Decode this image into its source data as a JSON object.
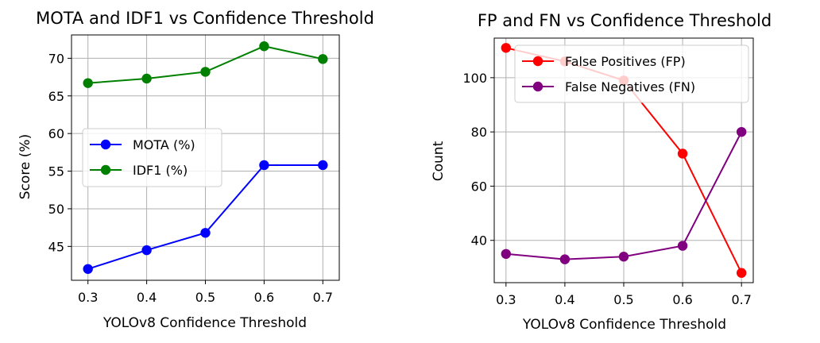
{
  "chart_data": [
    {
      "type": "line",
      "title": "MOTA and IDF1 vs Confidence Threshold",
      "xlabel": "YOLOv8 Confidence Threshold",
      "ylabel": "Score (%)",
      "x": [
        0.3,
        0.4,
        0.5,
        0.6,
        0.7
      ],
      "x_ticks": [
        "0.3",
        "0.4",
        "0.5",
        "0.6",
        "0.7"
      ],
      "y_ticks": [
        45,
        50,
        55,
        60,
        65,
        70
      ],
      "xlim": [
        0.272,
        0.728
      ],
      "ylim": [
        40.5,
        73.1
      ],
      "grid": true,
      "legend_position": "center-left",
      "series": [
        {
          "name": "MOTA (%)",
          "color": "#0000ff",
          "values": [
            42.0,
            44.5,
            46.8,
            55.8,
            55.8
          ]
        },
        {
          "name": "IDF1 (%)",
          "color": "#008000",
          "values": [
            66.7,
            67.3,
            68.2,
            71.6,
            69.9
          ]
        }
      ]
    },
    {
      "type": "line",
      "title": "FP and FN vs Confidence Threshold",
      "xlabel": "YOLOv8 Confidence Threshold",
      "ylabel": "Count",
      "x": [
        0.3,
        0.4,
        0.5,
        0.6,
        0.7
      ],
      "x_ticks": [
        "0.3",
        "0.4",
        "0.5",
        "0.6",
        "0.7"
      ],
      "y_ticks": [
        40,
        60,
        80,
        100
      ],
      "xlim": [
        0.28,
        0.72
      ],
      "ylim": [
        24.4,
        114.6
      ],
      "grid": true,
      "legend_position": "upper-right",
      "series": [
        {
          "name": "False Positives (FP)",
          "color": "#ff0000",
          "values": [
            111,
            106,
            99,
            72,
            28
          ]
        },
        {
          "name": "False Negatives (FN)",
          "color": "#800080",
          "values": [
            35,
            33,
            34,
            38,
            80
          ]
        }
      ]
    }
  ]
}
